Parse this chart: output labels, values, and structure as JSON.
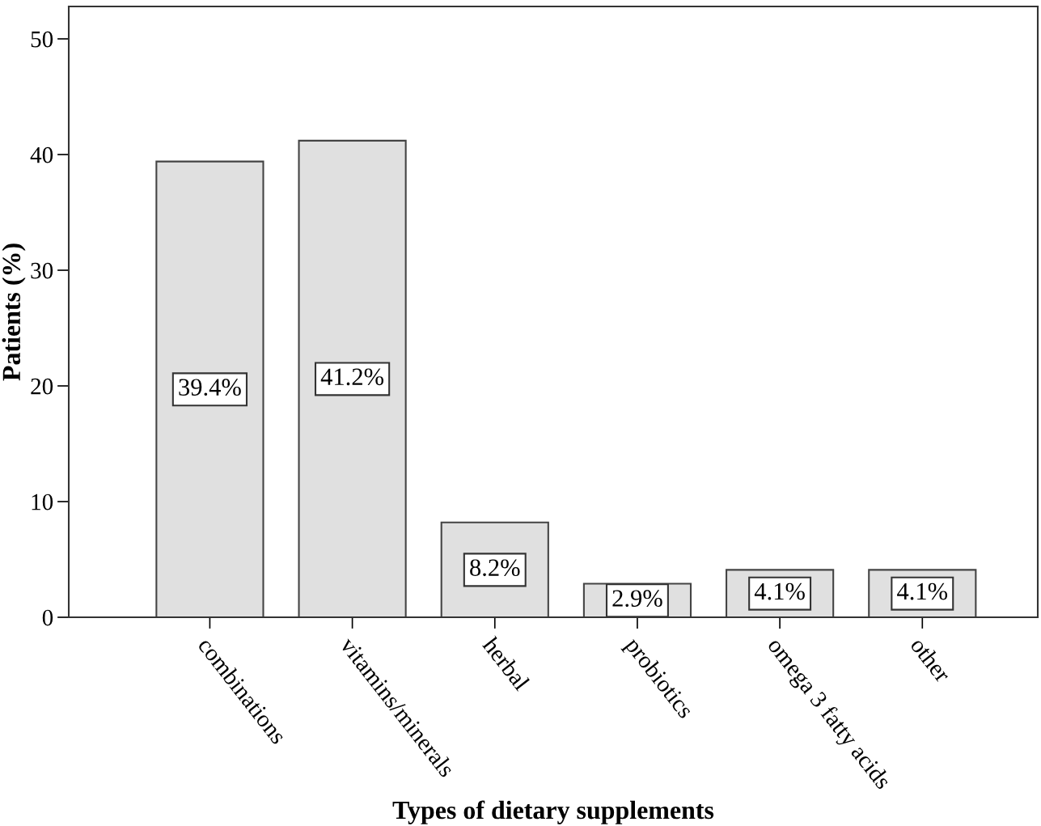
{
  "chart_data": {
    "type": "bar",
    "xlabel": "Types of dietary supplements",
    "ylabel": "Patients (%)",
    "categories": [
      "combinations",
      "vitamins/minerals",
      "herbal",
      "probiotics",
      "omega 3 fatty acids",
      "other"
    ],
    "values": [
      39.4,
      41.2,
      8.2,
      2.9,
      4.1,
      4.1
    ],
    "value_labels": [
      "39.4%",
      "41.2%",
      "8.2%",
      "2.9%",
      "4.1%",
      "4.1%"
    ],
    "color": "#e0e0e0",
    "ylim": [
      0,
      52.8
    ],
    "yticks": [
      0,
      10,
      20,
      30,
      40,
      50
    ],
    "grid": false,
    "legend": false
  }
}
